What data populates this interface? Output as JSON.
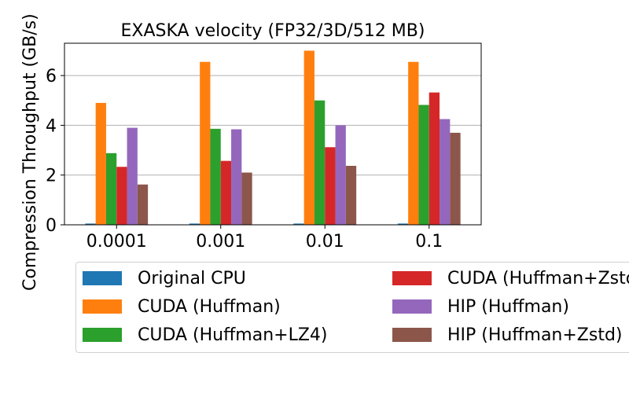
{
  "chart_data": {
    "type": "bar",
    "title": "EXASKA velocity (FP32/3D/512 MB)",
    "xlabel": "",
    "ylabel": "Compression Throughput (GB/s)",
    "categories": [
      "0.0001",
      "0.001",
      "0.01",
      "0.1"
    ],
    "ylim": [
      0,
      7.3
    ],
    "yticks": [
      0,
      2,
      4,
      6
    ],
    "grid": "y",
    "legend_position": "bottom",
    "series": [
      {
        "name": "Original CPU",
        "color": "#1f77b4",
        "values": [
          0.05,
          0.05,
          0.05,
          0.05
        ]
      },
      {
        "name": "CUDA (Huffman)",
        "color": "#ff7f0e",
        "values": [
          4.9,
          6.55,
          7.0,
          6.55
        ]
      },
      {
        "name": "CUDA (Huffman+LZ4)",
        "color": "#2ca02c",
        "values": [
          2.88,
          3.86,
          5.0,
          4.82
        ]
      },
      {
        "name": "CUDA (Huffman+Zstd)",
        "color": "#d62728",
        "values": [
          2.33,
          2.57,
          3.12,
          5.32
        ]
      },
      {
        "name": "HIP (Huffman)",
        "color": "#9467bd",
        "values": [
          3.9,
          3.84,
          4.0,
          4.25
        ]
      },
      {
        "name": "HIP (Huffman+Zstd)",
        "color": "#8c564b",
        "values": [
          1.62,
          2.1,
          2.37,
          3.7
        ]
      }
    ]
  }
}
